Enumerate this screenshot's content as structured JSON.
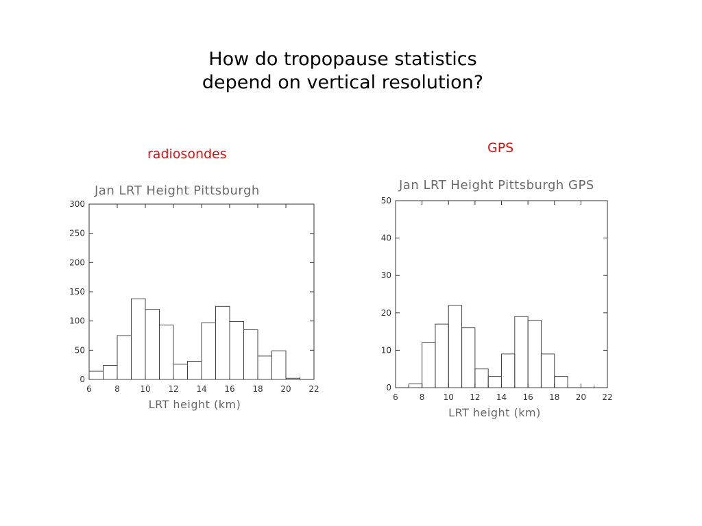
{
  "slide": {
    "title_line1": "How do tropopause statistics",
    "title_line2": "depend on vertical resolution?",
    "label_left": "radiosondes",
    "label_right": "GPS",
    "label_color": "#e01010"
  },
  "chart_data": [
    {
      "type": "bar",
      "title": "Jan LRT  Height Pittsburgh",
      "xlabel": "LRT height (km)",
      "ylabel": "",
      "xlim": [
        6,
        22
      ],
      "ylim": [
        0,
        300
      ],
      "xticks": [
        6,
        8,
        10,
        12,
        14,
        16,
        18,
        20,
        22
      ],
      "yticks": [
        0,
        50,
        100,
        150,
        200,
        250,
        300
      ],
      "bin_width": 1,
      "bin_starts": [
        6,
        7,
        8,
        9,
        10,
        11,
        12,
        13,
        14,
        15,
        16,
        17,
        18,
        19,
        20
      ],
      "values": [
        14,
        24,
        75,
        138,
        120,
        93,
        26,
        31,
        97,
        125,
        99,
        85,
        40,
        49,
        2
      ],
      "grid": false
    },
    {
      "type": "bar",
      "title": "Jan LRT  Height Pittsburgh GPS",
      "xlabel": "LRT height (km)",
      "ylabel": "",
      "xlim": [
        6,
        22
      ],
      "ylim": [
        0,
        50
      ],
      "xticks": [
        6,
        8,
        10,
        12,
        14,
        16,
        18,
        20,
        22
      ],
      "yticks": [
        0,
        10,
        20,
        30,
        40,
        50
      ],
      "bin_width": 1,
      "bin_starts": [
        6,
        7,
        8,
        9,
        10,
        11,
        12,
        13,
        14,
        15,
        16,
        17,
        18,
        19,
        20
      ],
      "values": [
        0,
        1,
        12,
        17,
        22,
        16,
        5,
        3,
        9,
        19,
        18,
        9,
        3,
        0,
        0
      ],
      "grid": false
    }
  ]
}
